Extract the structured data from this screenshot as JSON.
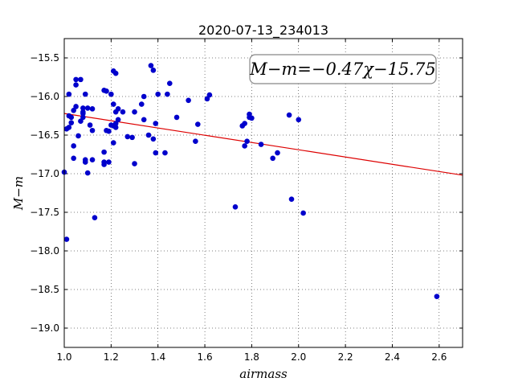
{
  "chart_data": {
    "type": "scatter",
    "title": "2020-07-13_234013",
    "xlabel": "airmass",
    "ylabel": "M−m",
    "xlim": [
      1.0,
      2.7
    ],
    "ylim": [
      -19.25,
      -15.25
    ],
    "y_inverted": true,
    "grid": true,
    "grid_style": "dotted",
    "xticks": [
      1.0,
      1.2,
      1.4,
      1.6,
      1.8,
      2.0,
      2.2,
      2.4,
      2.6
    ],
    "xtick_labels": [
      "1.0",
      "1.2",
      "1.4",
      "1.6",
      "1.8",
      "2.0",
      "2.2",
      "2.4",
      "2.6"
    ],
    "yticks": [
      -15.5,
      -16.0,
      -16.5,
      -17.0,
      -17.5,
      -18.0,
      -18.5,
      -19.0
    ],
    "ytick_labels": [
      "−15.5",
      "−16.0",
      "−16.5",
      "−17.0",
      "−17.5",
      "−18.0",
      "−18.5",
      "−19.0"
    ],
    "annotation": "M−m=−0.47χ−15.75",
    "colors": {
      "points": "#0000cc",
      "fit_line": "#dd0000"
    },
    "fit": {
      "slope": -0.47,
      "intercept": -15.75
    },
    "points": {
      "x": [
        1.0,
        1.01,
        1.01,
        1.02,
        1.02,
        1.02,
        1.03,
        1.03,
        1.04,
        1.04,
        1.04,
        1.05,
        1.05,
        1.05,
        1.06,
        1.07,
        1.07,
        1.08,
        1.08,
        1.08,
        1.08,
        1.09,
        1.09,
        1.09,
        1.1,
        1.1,
        1.11,
        1.12,
        1.12,
        1.12,
        1.13,
        1.17,
        1.17,
        1.17,
        1.17,
        1.18,
        1.18,
        1.19,
        1.19,
        1.2,
        1.2,
        1.21,
        1.21,
        1.21,
        1.21,
        1.22,
        1.22,
        1.22,
        1.22,
        1.23,
        1.23,
        1.25,
        1.27,
        1.29,
        1.3,
        1.3,
        1.33,
        1.34,
        1.34,
        1.36,
        1.37,
        1.38,
        1.38,
        1.39,
        1.39,
        1.4,
        1.43,
        1.44,
        1.45,
        1.48,
        1.53,
        1.56,
        1.57,
        1.61,
        1.62,
        1.73,
        1.76,
        1.77,
        1.77,
        1.78,
        1.79,
        1.79,
        1.8,
        1.84,
        1.89,
        1.91,
        1.96,
        1.97,
        2.0,
        2.02,
        2.59
      ],
      "y": [
        -16.98,
        -17.85,
        -16.42,
        -15.97,
        -16.25,
        -16.4,
        -16.34,
        -16.27,
        -16.64,
        -16.8,
        -16.18,
        -15.78,
        -15.85,
        -16.13,
        -16.51,
        -15.78,
        -16.32,
        -16.15,
        -16.22,
        -16.2,
        -16.27,
        -16.82,
        -16.85,
        -15.97,
        -16.99,
        -16.15,
        -16.37,
        -16.16,
        -16.44,
        -16.82,
        -17.57,
        -15.92,
        -16.72,
        -16.85,
        -16.88,
        -15.93,
        -16.44,
        -16.85,
        -16.45,
        -15.97,
        -16.37,
        -15.67,
        -16.1,
        -16.38,
        -16.6,
        -15.7,
        -16.2,
        -16.35,
        -16.4,
        -16.3,
        -16.16,
        -16.2,
        -16.52,
        -16.53,
        -16.87,
        -16.2,
        -16.1,
        -16.3,
        -16.0,
        -16.5,
        -15.6,
        -15.66,
        -16.55,
        -16.35,
        -16.73,
        -15.97,
        -16.73,
        -15.97,
        -15.83,
        -16.27,
        -16.05,
        -16.58,
        -16.36,
        -16.03,
        -15.98,
        -17.43,
        -16.38,
        -16.35,
        -16.64,
        -16.58,
        -16.27,
        -16.23,
        -16.28,
        -16.62,
        -16.8,
        -16.73,
        -16.24,
        -17.33,
        -16.3,
        -17.51,
        -18.59
      ]
    }
  }
}
